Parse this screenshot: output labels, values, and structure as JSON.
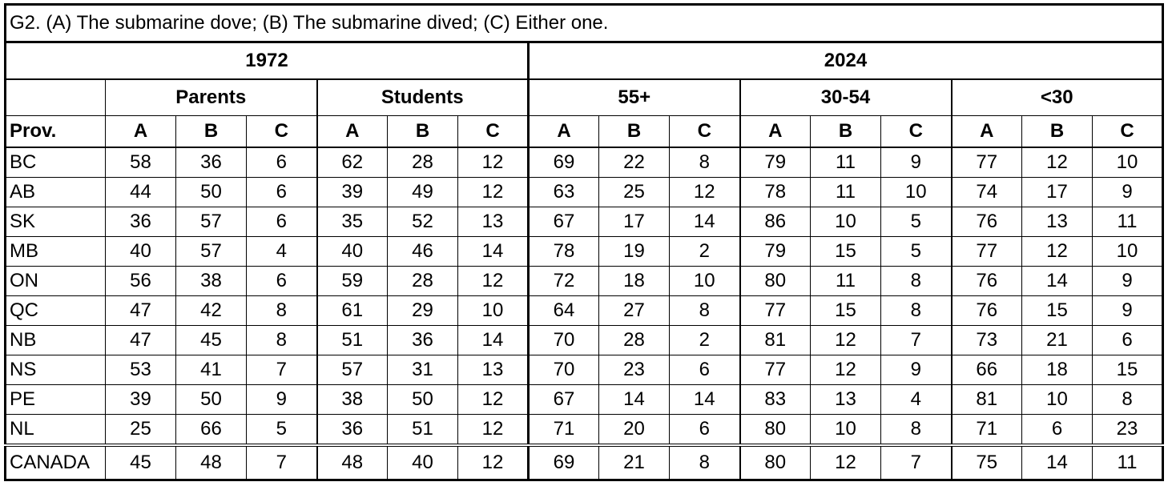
{
  "title": "G2. (A) The submarine dove; (B) The submarine dived; (C) Either one.",
  "years": [
    "1972",
    "2024"
  ],
  "groups": [
    "Parents",
    "Students",
    "55+",
    "30-54",
    "<30"
  ],
  "columns": [
    "Prov.",
    "A",
    "B",
    "C",
    "A",
    "B",
    "C",
    "A",
    "B",
    "C",
    "A",
    "B",
    "C",
    "A",
    "B",
    "C"
  ],
  "rows": [
    [
      "BC",
      58,
      36,
      6,
      62,
      28,
      12,
      69,
      22,
      8,
      79,
      11,
      9,
      77,
      12,
      10
    ],
    [
      "AB",
      44,
      50,
      6,
      39,
      49,
      12,
      63,
      25,
      12,
      78,
      11,
      10,
      74,
      17,
      9
    ],
    [
      "SK",
      36,
      57,
      6,
      35,
      52,
      13,
      67,
      17,
      14,
      86,
      10,
      5,
      76,
      13,
      11
    ],
    [
      "MB",
      40,
      57,
      4,
      40,
      46,
      14,
      78,
      19,
      2,
      79,
      15,
      5,
      77,
      12,
      10
    ],
    [
      "ON",
      56,
      38,
      6,
      59,
      28,
      12,
      72,
      18,
      10,
      80,
      11,
      8,
      76,
      14,
      9
    ],
    [
      "QC",
      47,
      42,
      8,
      61,
      29,
      10,
      64,
      27,
      8,
      77,
      15,
      8,
      76,
      15,
      9
    ],
    [
      "NB",
      47,
      45,
      8,
      51,
      36,
      14,
      70,
      28,
      2,
      81,
      12,
      7,
      73,
      21,
      6
    ],
    [
      "NS",
      53,
      41,
      7,
      57,
      31,
      13,
      70,
      23,
      6,
      77,
      12,
      9,
      66,
      18,
      15
    ],
    [
      "PE",
      39,
      50,
      9,
      38,
      50,
      12,
      67,
      14,
      14,
      83,
      13,
      4,
      81,
      10,
      8
    ],
    [
      "NL",
      25,
      66,
      5,
      36,
      51,
      12,
      71,
      20,
      6,
      80,
      10,
      8,
      71,
      6,
      23
    ]
  ],
  "total": [
    "CANADA",
    45,
    48,
    7,
    48,
    40,
    12,
    69,
    21,
    8,
    80,
    12,
    7,
    75,
    14,
    11
  ]
}
